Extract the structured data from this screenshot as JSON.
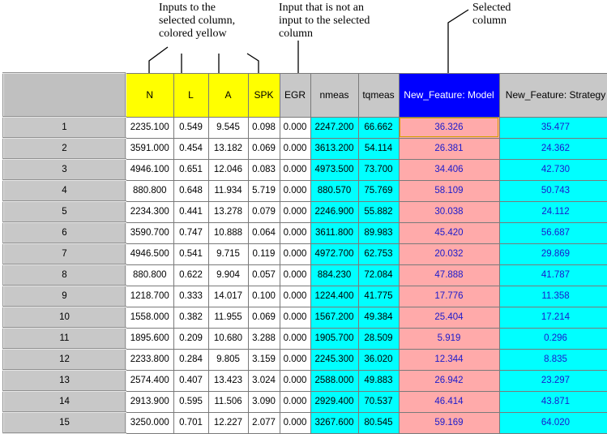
{
  "annotations": {
    "inputs": [
      "Inputs to the",
      "selected column,",
      "colored yellow"
    ],
    "not_input": [
      "Input that is not an",
      "input to the selected",
      "column"
    ],
    "selected": [
      "Selected",
      "column"
    ]
  },
  "columns": [
    {
      "key": "N",
      "label": "N",
      "kind": "input"
    },
    {
      "key": "L",
      "label": "L",
      "kind": "input"
    },
    {
      "key": "A",
      "label": "A",
      "kind": "input"
    },
    {
      "key": "SPK",
      "label": "SPK",
      "kind": "input"
    },
    {
      "key": "EGR",
      "label": "EGR",
      "kind": "other"
    },
    {
      "key": "nmeas",
      "label": "nmeas",
      "kind": "meas"
    },
    {
      "key": "tqmeas",
      "label": "tqmeas",
      "kind": "meas"
    },
    {
      "key": "model",
      "label": "New_Feature: Model",
      "kind": "selected"
    },
    {
      "key": "strategy",
      "label": "New_Feature: Strategy",
      "kind": "strategy"
    }
  ],
  "colors": {
    "input": "#ffff00",
    "selected": "#0000ff",
    "cyan": "#00ffff",
    "pink": "#ffaaaa",
    "header": "#c8c8c8"
  },
  "rows": [
    {
      "n": "1",
      "vals": [
        "2235.100",
        "0.549",
        "9.545",
        "0.098",
        "0.000",
        "2247.200",
        "66.662",
        "36.326",
        "35.477"
      ]
    },
    {
      "n": "2",
      "vals": [
        "3591.000",
        "0.454",
        "13.182",
        "0.069",
        "0.000",
        "3613.200",
        "54.114",
        "26.381",
        "24.362"
      ]
    },
    {
      "n": "3",
      "vals": [
        "4946.100",
        "0.651",
        "12.046",
        "0.083",
        "0.000",
        "4973.500",
        "73.700",
        "34.406",
        "42.730"
      ]
    },
    {
      "n": "4",
      "vals": [
        "880.800",
        "0.648",
        "11.934",
        "5.719",
        "0.000",
        "880.570",
        "75.769",
        "58.109",
        "50.743"
      ]
    },
    {
      "n": "5",
      "vals": [
        "2234.300",
        "0.441",
        "13.278",
        "0.079",
        "0.000",
        "2246.900",
        "55.882",
        "30.038",
        "24.112"
      ]
    },
    {
      "n": "6",
      "vals": [
        "3590.700",
        "0.747",
        "10.888",
        "0.064",
        "0.000",
        "3611.800",
        "89.983",
        "45.420",
        "56.687"
      ]
    },
    {
      "n": "7",
      "vals": [
        "4946.500",
        "0.541",
        "9.715",
        "0.119",
        "0.000",
        "4972.700",
        "62.753",
        "20.032",
        "29.869"
      ]
    },
    {
      "n": "8",
      "vals": [
        "880.800",
        "0.622",
        "9.904",
        "0.057",
        "0.000",
        "884.230",
        "72.084",
        "47.888",
        "41.787"
      ]
    },
    {
      "n": "9",
      "vals": [
        "1218.700",
        "0.333",
        "14.017",
        "0.100",
        "0.000",
        "1224.400",
        "41.775",
        "17.776",
        "11.358"
      ]
    },
    {
      "n": "10",
      "vals": [
        "1558.000",
        "0.382",
        "11.955",
        "0.069",
        "0.000",
        "1567.200",
        "49.384",
        "25.404",
        "17.214"
      ]
    },
    {
      "n": "11",
      "vals": [
        "1895.600",
        "0.209",
        "10.680",
        "3.288",
        "0.000",
        "1905.700",
        "28.509",
        "5.919",
        "0.296"
      ]
    },
    {
      "n": "12",
      "vals": [
        "2233.800",
        "0.284",
        "9.805",
        "3.159",
        "0.000",
        "2245.300",
        "36.020",
        "12.344",
        "8.835"
      ]
    },
    {
      "n": "13",
      "vals": [
        "2574.400",
        "0.407",
        "13.423",
        "3.024",
        "0.000",
        "2588.000",
        "49.883",
        "26.942",
        "23.297"
      ]
    },
    {
      "n": "14",
      "vals": [
        "2913.900",
        "0.595",
        "11.506",
        "3.090",
        "0.000",
        "2929.400",
        "70.537",
        "46.414",
        "43.871"
      ]
    },
    {
      "n": "15",
      "vals": [
        "3250.000",
        "0.701",
        "12.227",
        "2.077",
        "0.000",
        "3267.600",
        "80.545",
        "59.169",
        "64.020"
      ]
    }
  ]
}
